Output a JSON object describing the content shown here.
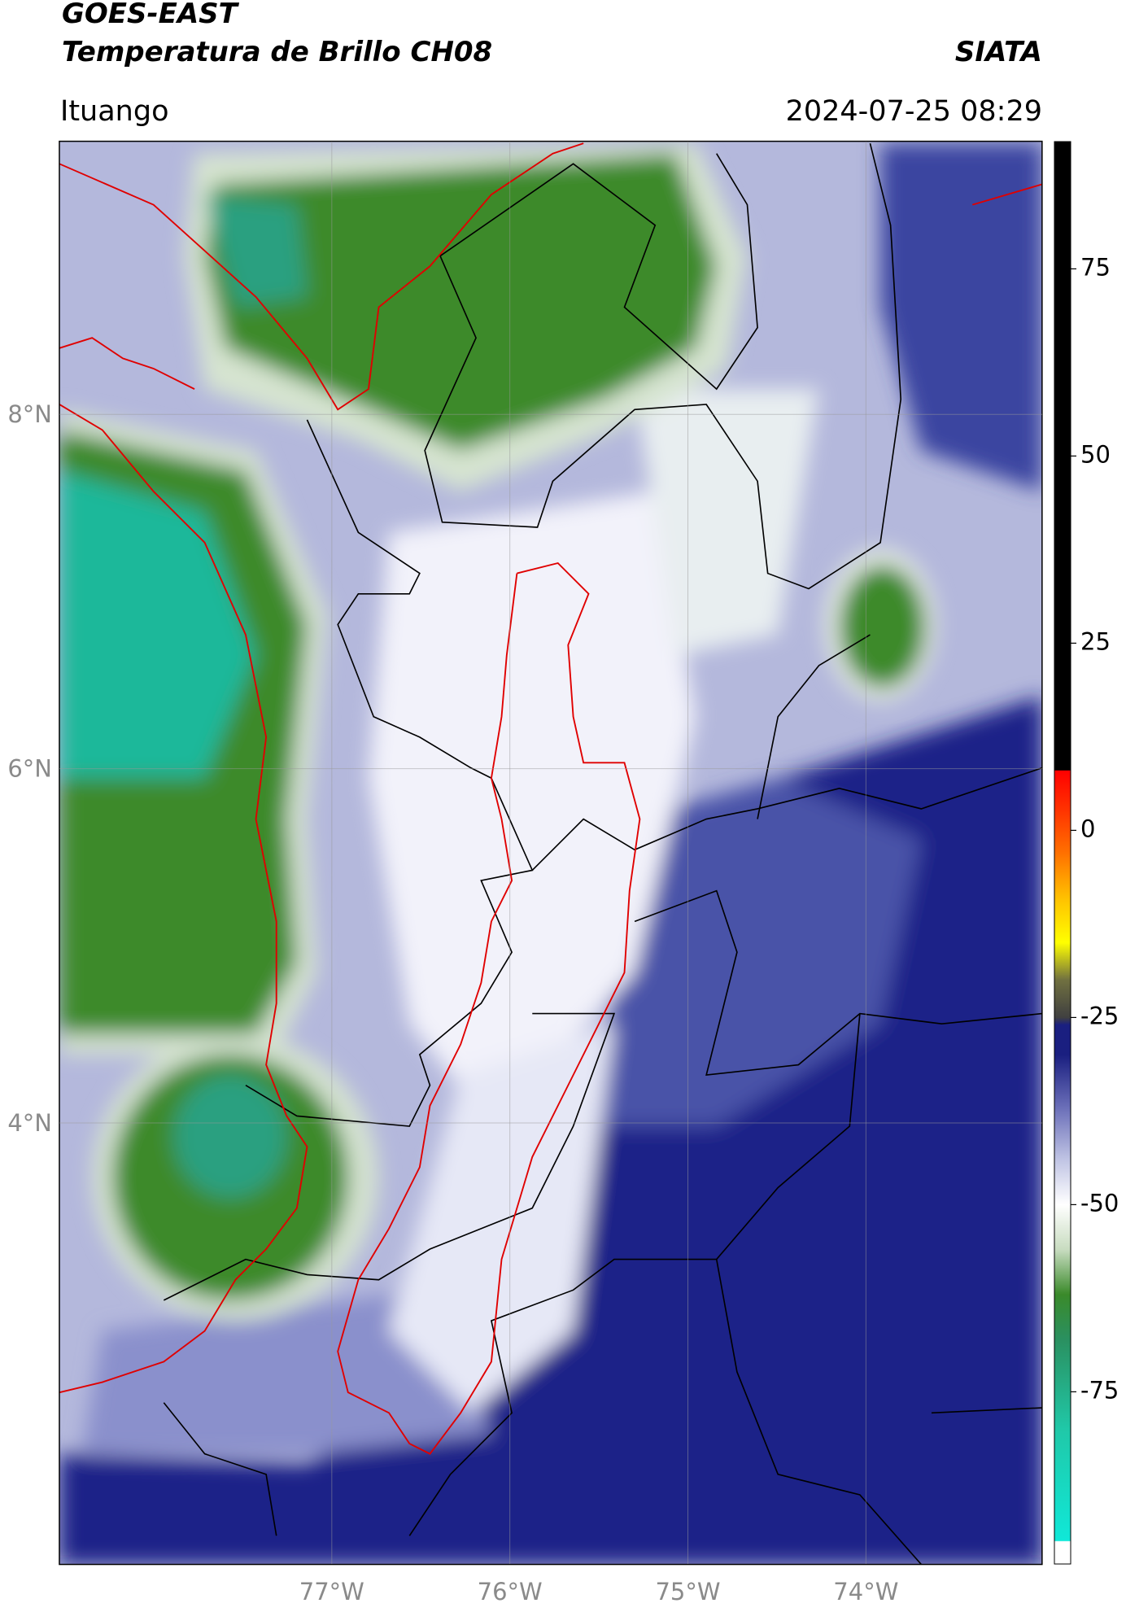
{
  "header": {
    "title": "GOES-EAST",
    "subtitle": "Temperatura de Brillo CH08",
    "agency": "SIATA",
    "location": "Ituango",
    "datetime": "2024-07-25 08:29"
  },
  "map": {
    "lonlim": [
      -78.53,
      -73.01
    ],
    "latlim": [
      1.51,
      9.54
    ],
    "lonticks": [
      {
        "value": -77,
        "label": "77°W"
      },
      {
        "value": -76,
        "label": "76°W"
      },
      {
        "value": -75,
        "label": "75°W"
      },
      {
        "value": -74,
        "label": "74°W"
      }
    ],
    "latticks": [
      {
        "value": 8,
        "label": "8°N"
      },
      {
        "value": 6,
        "label": "6°N"
      },
      {
        "value": 4,
        "label": "4°N"
      }
    ],
    "grid": true
  },
  "colorbar": {
    "lim": [
      -98,
      92
    ],
    "ticks": [
      75,
      50,
      25,
      0,
      -25,
      -50,
      -75
    ],
    "stops": [
      {
        "value": -98,
        "color": "#ffffff"
      },
      {
        "value": -95,
        "color": "#ffffff"
      },
      {
        "value": -94.9,
        "color": "#10e8d8"
      },
      {
        "value": -80,
        "color": "#20c8a8"
      },
      {
        "value": -68,
        "color": "#2a9060"
      },
      {
        "value": -62,
        "color": "#3a8a2a"
      },
      {
        "value": -56,
        "color": "#c8dcc0"
      },
      {
        "value": -50,
        "color": "#ffffff"
      },
      {
        "value": -44,
        "color": "#c0c4e4"
      },
      {
        "value": -37,
        "color": "#6a6eb8"
      },
      {
        "value": -30,
        "color": "#1a1f80"
      },
      {
        "value": -26,
        "color": "#1a1f80"
      },
      {
        "value": -25,
        "color": "#404040"
      },
      {
        "value": -20,
        "color": "#707040"
      },
      {
        "value": -15,
        "color": "#ffff00"
      },
      {
        "value": -9,
        "color": "#ffc000"
      },
      {
        "value": -3,
        "color": "#ff7000"
      },
      {
        "value": 3,
        "color": "#ff3000"
      },
      {
        "value": 8,
        "color": "#ff0000"
      },
      {
        "value": 8.01,
        "color": "#000000"
      },
      {
        "value": 92,
        "color": "#000000"
      }
    ]
  }
}
